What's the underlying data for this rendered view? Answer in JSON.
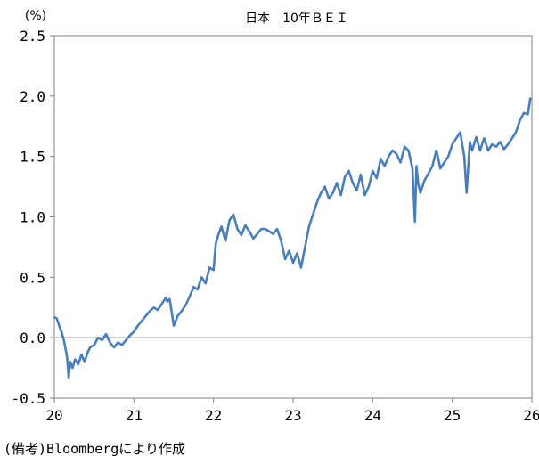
{
  "chart_data": {
    "type": "line",
    "title": "日本　10年ＢＥＩ",
    "unit_label": "(%)",
    "xlabel": "",
    "ylabel": "",
    "xlim": [
      20.0,
      26.0
    ],
    "ylim": [
      -0.5,
      2.5
    ],
    "x_ticks": [
      {
        "value": 20,
        "label": "20"
      },
      {
        "value": 21,
        "label": "21"
      },
      {
        "value": 22,
        "label": "22"
      },
      {
        "value": 23,
        "label": "23"
      },
      {
        "value": 24,
        "label": "24"
      },
      {
        "value": 25,
        "label": "25"
      },
      {
        "value": 26,
        "label": "26"
      }
    ],
    "y_ticks": [
      {
        "value": -0.5,
        "label": "-0.5"
      },
      {
        "value": 0.0,
        "label": "0.0"
      },
      {
        "value": 0.5,
        "label": "0.5"
      },
      {
        "value": 1.0,
        "label": "1.0"
      },
      {
        "value": 1.5,
        "label": "1.5"
      },
      {
        "value": 2.0,
        "label": "2.0"
      },
      {
        "value": 2.5,
        "label": "2.5"
      }
    ],
    "zero_line": true,
    "grid": false,
    "line_color": "#4a7ebb",
    "series": [
      {
        "x": [
          20.0,
          20.03,
          20.06,
          20.09,
          20.12,
          20.16,
          20.18,
          20.2,
          20.21,
          20.23,
          20.26,
          20.3,
          20.34,
          20.38,
          20.42,
          20.45,
          20.5,
          20.55,
          20.6,
          20.65,
          20.7,
          20.75,
          20.8,
          20.85,
          20.9,
          20.95,
          21.0,
          21.05,
          21.1,
          21.15,
          21.2,
          21.25,
          21.3,
          21.35,
          21.4,
          21.42,
          21.45,
          21.5,
          21.55,
          21.6,
          21.65,
          21.7,
          21.75,
          21.8,
          21.85,
          21.9,
          21.95,
          22.0,
          22.03,
          22.06,
          22.1,
          22.15,
          22.2,
          22.25,
          22.3,
          22.35,
          22.4,
          22.45,
          22.5,
          22.55,
          22.6,
          22.65,
          22.7,
          22.75,
          22.8,
          22.85,
          22.9,
          22.95,
          23.0,
          23.05,
          23.1,
          23.15,
          23.2,
          23.25,
          23.3,
          23.35,
          23.4,
          23.45,
          23.5,
          23.55,
          23.6,
          23.65,
          23.7,
          23.75,
          23.8,
          23.85,
          23.9,
          23.95,
          24.0,
          24.05,
          24.1,
          24.15,
          24.2,
          24.25,
          24.3,
          24.35,
          24.4,
          24.45,
          24.5,
          24.53,
          24.55,
          24.57,
          24.6,
          24.65,
          24.7,
          24.75,
          24.8,
          24.85,
          24.9,
          24.95,
          25.0,
          25.05,
          25.1,
          25.15,
          25.18,
          25.2,
          25.22,
          25.25,
          25.3,
          25.35,
          25.4,
          25.45,
          25.5,
          25.55,
          25.6,
          25.65,
          25.7,
          25.75,
          25.8,
          25.85,
          25.9,
          25.95,
          25.98
        ],
        "values": [
          0.17,
          0.16,
          0.1,
          0.05,
          -0.02,
          -0.16,
          -0.33,
          -0.2,
          -0.22,
          -0.25,
          -0.18,
          -0.22,
          -0.14,
          -0.2,
          -0.12,
          -0.08,
          -0.06,
          0.0,
          -0.02,
          0.03,
          -0.04,
          -0.08,
          -0.04,
          -0.06,
          -0.02,
          0.02,
          0.05,
          0.1,
          0.14,
          0.18,
          0.22,
          0.25,
          0.23,
          0.28,
          0.33,
          0.3,
          0.32,
          0.1,
          0.18,
          0.22,
          0.27,
          0.34,
          0.42,
          0.4,
          0.5,
          0.45,
          0.58,
          0.56,
          0.78,
          0.85,
          0.92,
          0.8,
          0.97,
          1.02,
          0.9,
          0.85,
          0.93,
          0.88,
          0.82,
          0.86,
          0.9,
          0.9,
          0.88,
          0.86,
          0.9,
          0.8,
          0.65,
          0.72,
          0.62,
          0.7,
          0.58,
          0.75,
          0.92,
          1.02,
          1.12,
          1.2,
          1.25,
          1.15,
          1.2,
          1.28,
          1.18,
          1.33,
          1.38,
          1.28,
          1.22,
          1.35,
          1.18,
          1.25,
          1.38,
          1.32,
          1.48,
          1.42,
          1.5,
          1.55,
          1.52,
          1.45,
          1.58,
          1.55,
          1.4,
          0.96,
          1.42,
          1.28,
          1.2,
          1.3,
          1.36,
          1.42,
          1.55,
          1.4,
          1.45,
          1.5,
          1.6,
          1.65,
          1.7,
          1.5,
          1.2,
          1.4,
          1.62,
          1.55,
          1.66,
          1.55,
          1.65,
          1.55,
          1.6,
          1.58,
          1.62,
          1.56,
          1.6,
          1.65,
          1.7,
          1.8,
          1.86,
          1.85,
          1.98
        ]
      }
    ]
  },
  "footnote": "(備考)Bloombergにより作成"
}
